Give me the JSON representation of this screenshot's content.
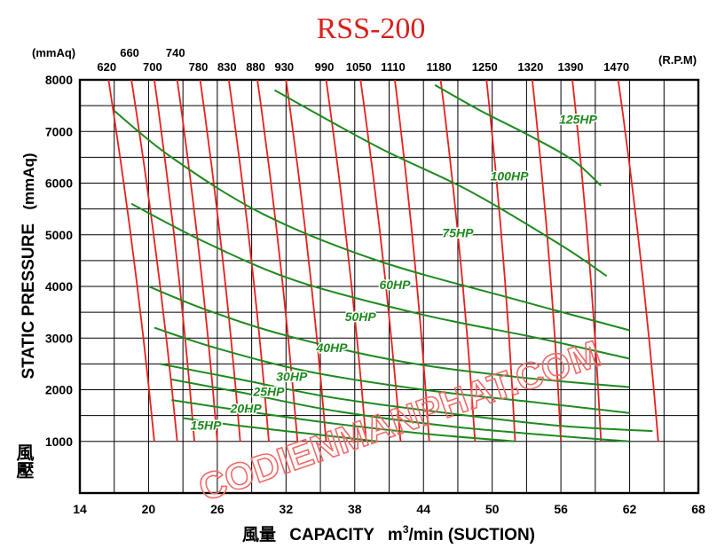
{
  "chart_data": {
    "type": "line",
    "title": "RSS-200",
    "xlabel": "風量  CAPACITY  m³/min (SUCTION)",
    "xlabel_cjk": "風量",
    "xlabel_main": "CAPACITY",
    "xlabel_unit": "m",
    "xlabel_unit_sup": "3",
    "xlabel_unit_rest": "/min (SUCTION)",
    "ylabel": "風壓  STATIC  PRESSURE  (mmAq)",
    "ylabel_cjk": "風壓",
    "ylabel_main": "STATIC  PRESSURE",
    "ylabel_unit": "(mmAq)",
    "top_unit_left": "(mmAq)",
    "top_unit_right": "(R.P.M)",
    "xlim": [
      14,
      68
    ],
    "ylim": [
      0,
      8000
    ],
    "x_ticks": [
      14,
      20,
      26,
      32,
      38,
      44,
      50,
      56,
      62,
      68
    ],
    "y_ticks": [
      1000,
      2000,
      3000,
      4000,
      5000,
      6000,
      7000,
      8000
    ],
    "x_gridlines": [
      14,
      17,
      20,
      23,
      26,
      29,
      32,
      35,
      38,
      41,
      44,
      47,
      50,
      53,
      56,
      59,
      62,
      65,
      68
    ],
    "y_gridlines": [
      0,
      1000,
      1500,
      2000,
      2500,
      3000,
      3500,
      4000,
      4500,
      5000,
      5500,
      6000,
      6500,
      7000,
      7500,
      8000
    ],
    "grid": true,
    "watermark": "CODIENMANPHAT.COM",
    "rpm_series": [
      {
        "name": "620",
        "points": [
          [
            16.5,
            8000
          ],
          [
            20.5,
            1000
          ]
        ],
        "label_row": 2
      },
      {
        "name": "660",
        "points": [
          [
            18.5,
            8000
          ],
          [
            22.5,
            1000
          ]
        ],
        "label_row": 1
      },
      {
        "name": "700",
        "points": [
          [
            20.5,
            8000
          ],
          [
            24.0,
            1000
          ]
        ],
        "label_row": 2
      },
      {
        "name": "740",
        "points": [
          [
            22.5,
            8000
          ],
          [
            26.0,
            1000
          ]
        ],
        "label_row": 1
      },
      {
        "name": "780",
        "points": [
          [
            24.5,
            8000
          ],
          [
            28.0,
            1000
          ]
        ],
        "label_row": 2
      },
      {
        "name": "830",
        "points": [
          [
            27.0,
            8000
          ],
          [
            30.5,
            1000
          ]
        ],
        "label_row": 2
      },
      {
        "name": "880",
        "points": [
          [
            29.5,
            8000
          ],
          [
            33.0,
            1000
          ]
        ],
        "label_row": 2
      },
      {
        "name": "930",
        "points": [
          [
            32.0,
            8000
          ],
          [
            35.5,
            1000
          ]
        ],
        "label_row": 2
      },
      {
        "name": "990",
        "points": [
          [
            35.5,
            8000
          ],
          [
            39.0,
            1000
          ]
        ],
        "label_row": 2
      },
      {
        "name": "1050",
        "points": [
          [
            38.5,
            8000
          ],
          [
            42.0,
            1000
          ]
        ],
        "label_row": 2
      },
      {
        "name": "1110",
        "points": [
          [
            41.5,
            8000
          ],
          [
            44.5,
            1000
          ]
        ],
        "label_row": 2
      },
      {
        "name": "1180",
        "points": [
          [
            45.5,
            8000
          ],
          [
            48.5,
            1000
          ]
        ],
        "label_row": 2
      },
      {
        "name": "1250",
        "points": [
          [
            49.5,
            8000
          ],
          [
            52.0,
            1000
          ]
        ],
        "label_row": 2
      },
      {
        "name": "1320",
        "points": [
          [
            53.5,
            8000
          ],
          [
            56.0,
            1000
          ]
        ],
        "label_row": 2
      },
      {
        "name": "1390",
        "points": [
          [
            57.0,
            8000
          ],
          [
            59.5,
            1000
          ]
        ],
        "label_row": 2
      },
      {
        "name": "1470",
        "points": [
          [
            61.0,
            8000
          ],
          [
            64.5,
            1000
          ]
        ],
        "label_row": 2
      }
    ],
    "hp_series": [
      {
        "name": "125HP",
        "points": [
          [
            45.0,
            7900
          ],
          [
            49.0,
            7400
          ],
          [
            53.0,
            6950
          ],
          [
            57.0,
            6450
          ],
          [
            59.5,
            5950
          ]
        ],
        "label_at": [
          57.5,
          7150
        ]
      },
      {
        "name": "100HP",
        "points": [
          [
            31.0,
            7800
          ],
          [
            40.0,
            6700
          ],
          [
            48.0,
            5850
          ],
          [
            56.0,
            4800
          ],
          [
            60.0,
            4200
          ]
        ],
        "label_at": [
          51.5,
          6050
        ]
      },
      {
        "name": "75HP",
        "points": [
          [
            17.0,
            7400
          ],
          [
            22.0,
            6500
          ],
          [
            30.0,
            5400
          ],
          [
            40.0,
            4500
          ],
          [
            52.0,
            3750
          ],
          [
            62.0,
            3150
          ]
        ],
        "label_at": [
          47.0,
          4950
        ]
      },
      {
        "name": "60HP",
        "points": [
          [
            18.5,
            5600
          ],
          [
            25.0,
            4850
          ],
          [
            33.0,
            4100
          ],
          [
            44.0,
            3450
          ],
          [
            54.0,
            3000
          ],
          [
            62.0,
            2600
          ]
        ],
        "label_at": [
          41.5,
          3950
        ]
      },
      {
        "name": "50HP",
        "points": [
          [
            20.0,
            4000
          ],
          [
            25.0,
            3550
          ],
          [
            32.0,
            3050
          ],
          [
            42.0,
            2550
          ],
          [
            52.0,
            2250
          ],
          [
            62.0,
            2050
          ]
        ],
        "label_at": [
          38.5,
          3330
        ]
      },
      {
        "name": "40HP",
        "points": [
          [
            20.5,
            3200
          ],
          [
            26.0,
            2800
          ],
          [
            34.0,
            2350
          ],
          [
            44.0,
            2000
          ],
          [
            54.0,
            1750
          ],
          [
            62.0,
            1550
          ]
        ],
        "label_at": [
          36.0,
          2730
        ]
      },
      {
        "name": "30HP",
        "points": [
          [
            21.0,
            2500
          ],
          [
            28.0,
            2200
          ],
          [
            36.0,
            1850
          ],
          [
            46.0,
            1550
          ],
          [
            56.0,
            1300
          ],
          [
            64.0,
            1200
          ]
        ],
        "label_at": [
          32.5,
          2170
        ]
      },
      {
        "name": "25HP",
        "points": [
          [
            22.0,
            2200
          ],
          [
            28.0,
            1950
          ],
          [
            36.0,
            1600
          ],
          [
            46.0,
            1300
          ],
          [
            56.0,
            1100
          ],
          [
            62.0,
            1000
          ]
        ],
        "label_at": [
          30.5,
          1880
        ]
      },
      {
        "name": "20HP",
        "points": [
          [
            22.0,
            1800
          ],
          [
            28.0,
            1600
          ],
          [
            36.0,
            1350
          ],
          [
            44.0,
            1150
          ],
          [
            52.0,
            1000
          ]
        ],
        "label_at": [
          28.5,
          1550
        ]
      },
      {
        "name": "15HP",
        "points": [
          [
            23.0,
            1450
          ],
          [
            28.0,
            1300
          ],
          [
            34.0,
            1150
          ],
          [
            40.0,
            1000
          ]
        ],
        "label_at": [
          25.0,
          1230
        ]
      }
    ],
    "colors": {
      "rpm_line": "#e8201c",
      "hp_line": "#1e8a1e",
      "title": "#d8201c",
      "watermark": "#f06a68",
      "grid": "#000000",
      "text": "#000000"
    }
  }
}
